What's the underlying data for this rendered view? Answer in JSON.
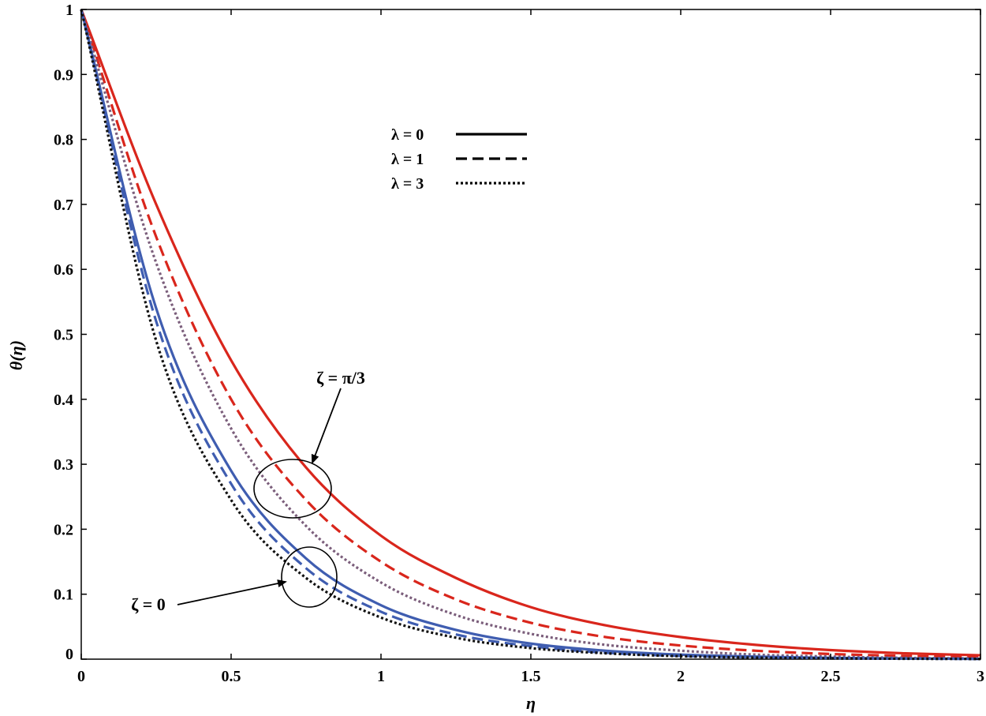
{
  "chart_data": {
    "type": "line",
    "xlabel": "η",
    "ylabel": "θ(η)",
    "xlim": [
      0,
      3
    ],
    "ylim": [
      0,
      1
    ],
    "xticks": [
      0,
      0.5,
      1,
      1.5,
      2,
      2.5,
      3
    ],
    "xtick_labels": [
      "0",
      "0.5",
      "1",
      "1.5",
      "2",
      "2.5",
      "3"
    ],
    "yticks": [
      0,
      0.1,
      0.2,
      0.3,
      0.4,
      0.5,
      0.6,
      0.7,
      0.8,
      0.9,
      1
    ],
    "ytick_labels": [
      "0",
      "0.1",
      "0.2",
      "0.3",
      "0.4",
      "0.5",
      "0.6",
      "0.7",
      "0.8",
      "0.9",
      "1"
    ],
    "grid": false,
    "legend_position": "top-center",
    "legend": [
      {
        "label": "λ = 0",
        "style": "solid"
      },
      {
        "label": "λ = 1",
        "style": "dashed"
      },
      {
        "label": "λ = 3",
        "style": "dotted"
      }
    ],
    "x": [
      0,
      0.25,
      0.5,
      0.75,
      1.0,
      1.25,
      1.5,
      1.75,
      2.0,
      2.25,
      2.5,
      2.75,
      3.0
    ],
    "series": [
      {
        "group": "ζ = π/3",
        "lambda": 0,
        "style": "solid",
        "color": "#d9261c",
        "values": [
          1.0,
          0.7,
          0.46,
          0.295,
          0.19,
          0.125,
          0.08,
          0.052,
          0.034,
          0.022,
          0.014,
          0.009,
          0.006
        ]
      },
      {
        "group": "ζ = π/3",
        "lambda": 1,
        "style": "dashed",
        "color": "#d9261c",
        "values": [
          1.0,
          0.65,
          0.4,
          0.245,
          0.15,
          0.092,
          0.056,
          0.034,
          0.021,
          0.013,
          0.008,
          0.005,
          0.003
        ]
      },
      {
        "group": "ζ = π/3",
        "lambda": 3,
        "style": "dotted",
        "color": "#7b5e7b",
        "values": [
          1.0,
          0.61,
          0.355,
          0.205,
          0.118,
          0.068,
          0.039,
          0.022,
          0.013,
          0.007,
          0.004,
          0.002,
          0.001
        ]
      },
      {
        "group": "ζ = 0",
        "lambda": 0,
        "style": "solid",
        "color": "#3f5db0",
        "values": [
          1.0,
          0.54,
          0.29,
          0.155,
          0.083,
          0.045,
          0.024,
          0.013,
          0.007,
          0.004,
          0.002,
          0.001,
          0.0005
        ]
      },
      {
        "group": "ζ = 0",
        "lambda": 1,
        "style": "dashed",
        "color": "#3f5db0",
        "values": [
          1.0,
          0.52,
          0.27,
          0.14,
          0.073,
          0.038,
          0.02,
          0.01,
          0.005,
          0.003,
          0.0015,
          0.0008,
          0.0004
        ]
      },
      {
        "group": "ζ = 0",
        "lambda": 3,
        "style": "dotted",
        "color": "#111111",
        "values": [
          1.0,
          0.49,
          0.245,
          0.125,
          0.064,
          0.033,
          0.017,
          0.009,
          0.0045,
          0.0023,
          0.0012,
          0.0006,
          0.0003
        ]
      }
    ],
    "annotations": [
      {
        "text": "ζ = π/3",
        "points_to": [
          0.72,
          0.26
        ]
      },
      {
        "text": "ζ = 0",
        "points_to": [
          0.76,
          0.12
        ]
      }
    ]
  }
}
